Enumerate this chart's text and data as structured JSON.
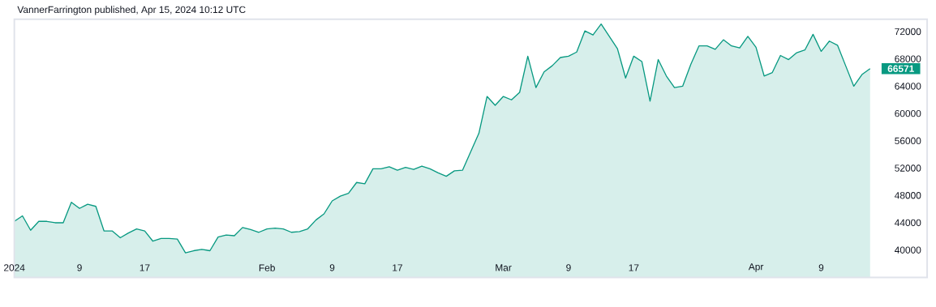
{
  "chart_data": {
    "type": "area",
    "title": "VannerFarrington published, Apr 15, 2024 10:12 UTC",
    "x": [
      "2024-01-01",
      "2024-01-02",
      "2024-01-03",
      "2024-01-04",
      "2024-01-05",
      "2024-01-06",
      "2024-01-07",
      "2024-01-08",
      "2024-01-09",
      "2024-01-10",
      "2024-01-11",
      "2024-01-12",
      "2024-01-13",
      "2024-01-14",
      "2024-01-15",
      "2024-01-16",
      "2024-01-17",
      "2024-01-18",
      "2024-01-19",
      "2024-01-20",
      "2024-01-21",
      "2024-01-22",
      "2024-01-23",
      "2024-01-24",
      "2024-01-25",
      "2024-01-26",
      "2024-01-27",
      "2024-01-28",
      "2024-01-29",
      "2024-01-30",
      "2024-01-31",
      "2024-02-01",
      "2024-02-02",
      "2024-02-03",
      "2024-02-04",
      "2024-02-05",
      "2024-02-06",
      "2024-02-07",
      "2024-02-08",
      "2024-02-09",
      "2024-02-10",
      "2024-02-11",
      "2024-02-12",
      "2024-02-13",
      "2024-02-14",
      "2024-02-15",
      "2024-02-16",
      "2024-02-17",
      "2024-02-18",
      "2024-02-19",
      "2024-02-20",
      "2024-02-21",
      "2024-02-22",
      "2024-02-23",
      "2024-02-24",
      "2024-02-25",
      "2024-02-26",
      "2024-02-27",
      "2024-02-28",
      "2024-02-29",
      "2024-03-01",
      "2024-03-02",
      "2024-03-03",
      "2024-03-04",
      "2024-03-05",
      "2024-03-06",
      "2024-03-07",
      "2024-03-08",
      "2024-03-09",
      "2024-03-10",
      "2024-03-11",
      "2024-03-12",
      "2024-03-13",
      "2024-03-14",
      "2024-03-15",
      "2024-03-16",
      "2024-03-17",
      "2024-03-18",
      "2024-03-19",
      "2024-03-20",
      "2024-03-21",
      "2024-03-22",
      "2024-03-23",
      "2024-03-24",
      "2024-03-25",
      "2024-03-26",
      "2024-03-27",
      "2024-03-28",
      "2024-03-29",
      "2024-03-30",
      "2024-03-31",
      "2024-04-01",
      "2024-04-02",
      "2024-04-03",
      "2024-04-04",
      "2024-04-05",
      "2024-04-06",
      "2024-04-07",
      "2024-04-08",
      "2024-04-09",
      "2024-04-10",
      "2024-04-11",
      "2024-04-12",
      "2024-04-13",
      "2024-04-14",
      "2024-04-15"
    ],
    "series": [
      {
        "color": "#089981",
        "values": [
          44200,
          45000,
          42900,
          44200,
          44200,
          44000,
          44000,
          47000,
          46100,
          46700,
          46400,
          42800,
          42800,
          41800,
          42500,
          43100,
          42800,
          41300,
          41700,
          41700,
          41600,
          39600,
          39900,
          40100,
          39900,
          41900,
          42200,
          42100,
          43300,
          43000,
          42600,
          43100,
          43200,
          43100,
          42600,
          42700,
          43100,
          44400,
          45300,
          47200,
          47900,
          48300,
          49900,
          49700,
          51900,
          51900,
          52200,
          51700,
          52100,
          51800,
          52300,
          51900,
          51300,
          50800,
          51600,
          51700,
          54400,
          57100,
          62500,
          61200,
          62500,
          62000,
          63100,
          68400,
          63800,
          66100,
          67000,
          68200,
          68400,
          69000,
          72100,
          71500,
          73100,
          71300,
          69500,
          65200,
          68400,
          67600,
          61800,
          67900,
          65500,
          63800,
          64000,
          67200,
          69900,
          69900,
          69400,
          70800,
          69900,
          69600,
          71300,
          69700,
          65500,
          66000,
          68500,
          67900,
          68900,
          69300,
          71600,
          69100,
          70600,
          70000,
          67000,
          64000,
          65700,
          66571
        ]
      }
    ],
    "xlim": [
      "2024-01-01",
      "2024-04-22"
    ],
    "ylim": [
      36000,
      73800
    ],
    "xticks": [
      {
        "value": "2024-01-01",
        "label": "2024"
      },
      {
        "value": "2024-01-09",
        "label": "9"
      },
      {
        "value": "2024-01-17",
        "label": "17"
      },
      {
        "value": "2024-02-01",
        "label": "Feb"
      },
      {
        "value": "2024-02-09",
        "label": "9"
      },
      {
        "value": "2024-02-17",
        "label": "17"
      },
      {
        "value": "2024-03-01",
        "label": "Mar"
      },
      {
        "value": "2024-03-09",
        "label": "9"
      },
      {
        "value": "2024-03-17",
        "label": "17"
      },
      {
        "value": "2024-04-01",
        "label": "Apr"
      },
      {
        "value": "2024-04-09",
        "label": "9"
      }
    ],
    "yticks": [
      40000,
      44000,
      48000,
      52000,
      56000,
      60000,
      64000,
      68000,
      72000
    ],
    "annotations": [
      {
        "text": "66571",
        "x": "2024-04-15",
        "y": 66571
      }
    ]
  }
}
